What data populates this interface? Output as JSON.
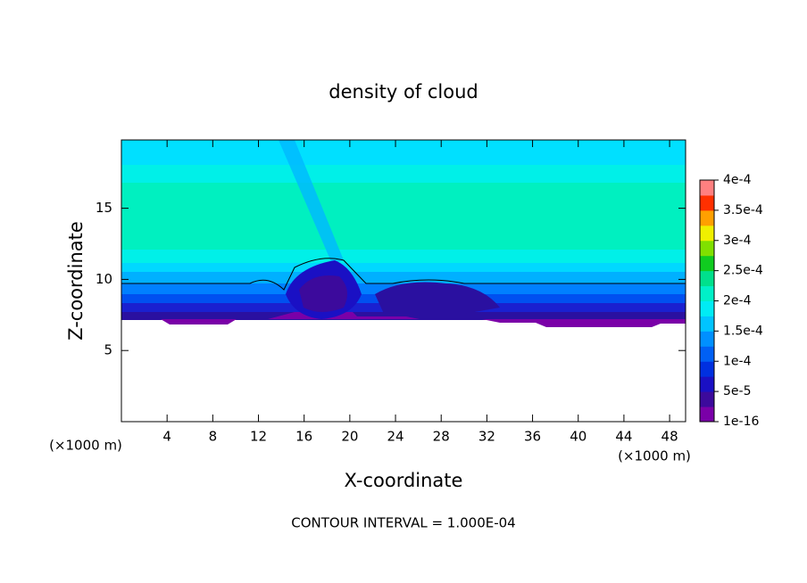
{
  "chart_data": {
    "type": "contour",
    "title": "density of cloud",
    "x_label": "X-coordinate",
    "y_label": "Z-coordinate",
    "x_unit": "(×1000 m)",
    "y_unit": "(×1000 m)",
    "footer": "CONTOUR INTERVAL = 1.000E-04",
    "xlim": [
      0,
      49.4
    ],
    "ylim": [
      0,
      19.8
    ],
    "xticks": [
      4,
      8,
      12,
      16,
      20,
      24,
      28,
      32,
      36,
      40,
      44,
      48
    ],
    "yticks": [
      5,
      10,
      15
    ],
    "colorbar": {
      "lim": [
        1e-16,
        0.0004
      ],
      "ticks": [
        {
          "value": 1e-16,
          "label": "1e-16"
        },
        {
          "value": 5e-05,
          "label": "5e-5"
        },
        {
          "value": 0.0001,
          "label": "1e-4"
        },
        {
          "value": 0.00015,
          "label": "1.5e-4"
        },
        {
          "value": 0.0002,
          "label": "2e-4"
        },
        {
          "value": 0.00025,
          "label": "2.5e-4"
        },
        {
          "value": 0.0003,
          "label": "3e-4"
        },
        {
          "value": 0.00035,
          "label": "3.5e-4"
        },
        {
          "value": 0.0004,
          "label": "4e-4"
        }
      ],
      "colors": [
        "#7a00a8",
        "#3c0a9c",
        "#1a10c4",
        "#0030e0",
        "#0060f4",
        "#0090ff",
        "#00c4ff",
        "#00ecf4",
        "#00f0c8",
        "#00e08c",
        "#10cc20",
        "#80e000",
        "#f0f000",
        "#ffa000",
        "#ff3000",
        "#ff8080"
      ]
    }
  }
}
